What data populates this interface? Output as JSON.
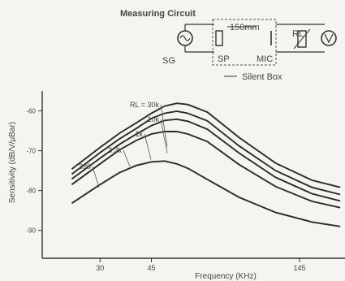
{
  "circuit": {
    "title": "Measuring Circuit",
    "sg_label": "SG",
    "sp_label": "SP",
    "mic_label": "MIC",
    "distance_label": "150mm",
    "load_label": "RL",
    "box_label": "Silent Box"
  },
  "chart_data": {
    "type": "line",
    "xlabel": "Frequency (KHz)",
    "ylabel": "Sensitivity (dB/V/μBar)",
    "x_scale": "log",
    "xlim": [
      19,
      205
    ],
    "ylim": [
      -97,
      -55
    ],
    "x_ticks": [
      {
        "value": 30,
        "label": "30"
      },
      {
        "value": 45,
        "label": "45"
      },
      {
        "value": 145,
        "label": "145"
      }
    ],
    "y_ticks": [
      {
        "value": -60,
        "label": "-60"
      },
      {
        "value": -70,
        "label": "-70"
      },
      {
        "value": -80,
        "label": "-80"
      },
      {
        "value": -90,
        "label": "-90"
      }
    ],
    "grid": false,
    "series_label_prefix": "RL = ",
    "series": [
      {
        "name": "30k",
        "x": [
          24,
          30,
          35,
          40,
          45,
          50,
          55,
          60,
          70,
          90,
          120,
          160,
          200
        ],
        "y": [
          -74.6,
          -69.2,
          -65.6,
          -63.0,
          -60.6,
          -58.8,
          -58.1,
          -58.4,
          -60.3,
          -66.7,
          -73.1,
          -77.4,
          -79.2
        ]
      },
      {
        "name": "10k",
        "x": [
          24,
          30,
          35,
          40,
          45,
          50,
          55,
          60,
          70,
          90,
          120,
          160,
          200
        ],
        "y": [
          -75.9,
          -70.5,
          -67.0,
          -64.4,
          -61.9,
          -60.6,
          -60.1,
          -60.6,
          -62.5,
          -68.8,
          -75.0,
          -79.2,
          -81.0
        ]
      },
      {
        "name": "1k",
        "x": [
          24,
          30,
          35,
          40,
          45,
          50,
          55,
          60,
          70,
          90,
          120,
          160,
          200
        ],
        "y": [
          -77.1,
          -71.9,
          -68.4,
          -65.8,
          -63.7,
          -62.4,
          -62.1,
          -62.6,
          -64.6,
          -70.6,
          -76.7,
          -80.8,
          -82.6
        ]
      },
      {
        "name": "3.3k",
        "x": [
          24,
          30,
          35,
          40,
          45,
          50,
          55,
          60,
          70,
          90,
          120,
          160,
          200
        ],
        "y": [
          -78.5,
          -73.3,
          -69.8,
          -67.4,
          -65.8,
          -65.2,
          -65.2,
          -65.8,
          -67.7,
          -73.5,
          -79.0,
          -82.7,
          -84.3
        ]
      },
      {
        "name": "330",
        "x": [
          24,
          30,
          35,
          40,
          45,
          50,
          55,
          60,
          70,
          90,
          120,
          160,
          200
        ],
        "y": [
          -83.2,
          -78.5,
          -75.5,
          -73.7,
          -72.8,
          -72.6,
          -73.3,
          -74.4,
          -77.2,
          -81.7,
          -85.5,
          -87.9,
          -89.0
        ]
      }
    ]
  }
}
